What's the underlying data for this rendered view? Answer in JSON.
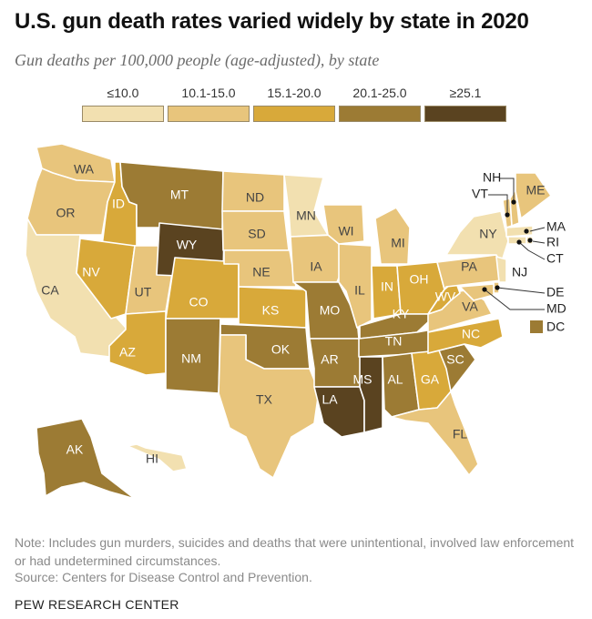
{
  "title": "U.S. gun death rates varied widely by state in 2020",
  "subtitle": "Gun deaths per 100,000 people (age-adjusted), by state",
  "legend": [
    {
      "label": "≤10.0",
      "color": "#f2e0b0"
    },
    {
      "label": "10.1-15.0",
      "color": "#e8c57c"
    },
    {
      "label": "15.1-20.0",
      "color": "#d8a93a"
    },
    {
      "label": "20.1-25.0",
      "color": "#9c7b34"
    },
    {
      "label": "≥25.1",
      "color": "#5a4320"
    }
  ],
  "states": [
    {
      "abbr": "WA",
      "bin": 1
    },
    {
      "abbr": "OR",
      "bin": 1
    },
    {
      "abbr": "CA",
      "bin": 0
    },
    {
      "abbr": "ID",
      "bin": 2
    },
    {
      "abbr": "NV",
      "bin": 2
    },
    {
      "abbr": "UT",
      "bin": 1
    },
    {
      "abbr": "AZ",
      "bin": 2
    },
    {
      "abbr": "MT",
      "bin": 3
    },
    {
      "abbr": "WY",
      "bin": 4
    },
    {
      "abbr": "CO",
      "bin": 2
    },
    {
      "abbr": "NM",
      "bin": 3
    },
    {
      "abbr": "ND",
      "bin": 1
    },
    {
      "abbr": "SD",
      "bin": 1
    },
    {
      "abbr": "NE",
      "bin": 1
    },
    {
      "abbr": "KS",
      "bin": 2
    },
    {
      "abbr": "OK",
      "bin": 3
    },
    {
      "abbr": "TX",
      "bin": 1
    },
    {
      "abbr": "MN",
      "bin": 0
    },
    {
      "abbr": "IA",
      "bin": 1
    },
    {
      "abbr": "MO",
      "bin": 3
    },
    {
      "abbr": "AR",
      "bin": 3
    },
    {
      "abbr": "LA",
      "bin": 4
    },
    {
      "abbr": "WI",
      "bin": 1
    },
    {
      "abbr": "IL",
      "bin": 1
    },
    {
      "abbr": "MI",
      "bin": 1
    },
    {
      "abbr": "IN",
      "bin": 2
    },
    {
      "abbr": "OH",
      "bin": 2
    },
    {
      "abbr": "KY",
      "bin": 3
    },
    {
      "abbr": "TN",
      "bin": 3
    },
    {
      "abbr": "MS",
      "bin": 4
    },
    {
      "abbr": "AL",
      "bin": 3
    },
    {
      "abbr": "GA",
      "bin": 2
    },
    {
      "abbr": "FL",
      "bin": 1
    },
    {
      "abbr": "SC",
      "bin": 3
    },
    {
      "abbr": "NC",
      "bin": 2
    },
    {
      "abbr": "VA",
      "bin": 1
    },
    {
      "abbr": "WV",
      "bin": 2
    },
    {
      "abbr": "PA",
      "bin": 1
    },
    {
      "abbr": "NY",
      "bin": 0
    },
    {
      "abbr": "NJ",
      "bin": 0
    },
    {
      "abbr": "DE",
      "bin": 1
    },
    {
      "abbr": "MD",
      "bin": 1
    },
    {
      "abbr": "DC",
      "bin": 3
    },
    {
      "abbr": "VT",
      "bin": 1
    },
    {
      "abbr": "NH",
      "bin": 1
    },
    {
      "abbr": "ME",
      "bin": 1
    },
    {
      "abbr": "MA",
      "bin": 0
    },
    {
      "abbr": "RI",
      "bin": 0
    },
    {
      "abbr": "CT",
      "bin": 0
    },
    {
      "abbr": "AK",
      "bin": 3
    },
    {
      "abbr": "HI",
      "bin": 0
    }
  ],
  "note": "Note: Includes gun murders, suicides and deaths that were unintentional, involved law enforcement or had undetermined circumstances.",
  "source": "Source: Centers for Disease Control and Prevention.",
  "credit": "PEW RESEARCH CENTER"
}
